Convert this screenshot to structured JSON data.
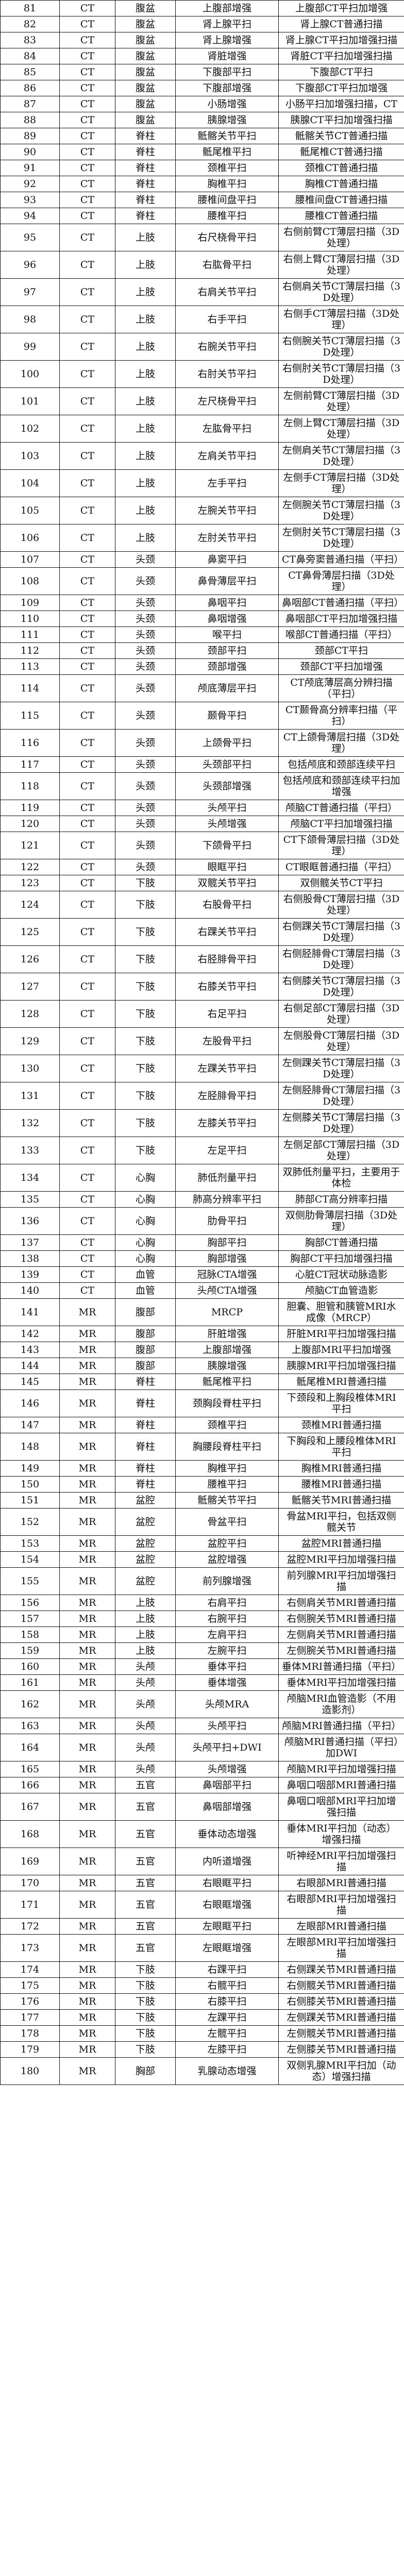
{
  "table": {
    "rows": [
      [
        "81",
        "CT",
        "腹盆",
        "上腹部增强",
        "上腹部CT平扫加增强"
      ],
      [
        "82",
        "CT",
        "腹盆",
        "肾上腺平扫",
        "肾上腺CT普通扫描"
      ],
      [
        "83",
        "CT",
        "腹盆",
        "肾上腺增强",
        "肾上腺CT平扫加增强扫描"
      ],
      [
        "84",
        "CT",
        "腹盆",
        "肾脏增强",
        "肾脏CT平扫加增强扫描"
      ],
      [
        "85",
        "CT",
        "腹盆",
        "下腹部平扫",
        "下腹部CT平扫"
      ],
      [
        "86",
        "CT",
        "腹盆",
        "下腹部增强",
        "下腹部CT平扫加增强"
      ],
      [
        "87",
        "CT",
        "腹盆",
        "小肠增强",
        "小肠平扫加增强扫描，CT"
      ],
      [
        "88",
        "CT",
        "腹盆",
        "胰腺增强",
        "胰腺CT平扫加增强扫描"
      ],
      [
        "89",
        "CT",
        "脊柱",
        "骶髂关节平扫",
        "骶髂关节CT普通扫描"
      ],
      [
        "90",
        "CT",
        "脊柱",
        "骶尾椎平扫",
        "骶尾椎CT普通扫描"
      ],
      [
        "91",
        "CT",
        "脊柱",
        "颈椎平扫",
        "颈椎CT普通扫描"
      ],
      [
        "92",
        "CT",
        "脊柱",
        "胸椎平扫",
        "胸椎CT普通扫描"
      ],
      [
        "93",
        "CT",
        "脊柱",
        "腰椎间盘平扫",
        "腰椎间盘CT普通扫描"
      ],
      [
        "94",
        "CT",
        "脊柱",
        "腰椎平扫",
        "腰椎CT普通扫描"
      ],
      [
        "95",
        "CT",
        "上肢",
        "右尺桡骨平扫",
        "右侧前臂CT薄层扫描（3D处理）"
      ],
      [
        "96",
        "CT",
        "上肢",
        "右肱骨平扫",
        "右侧上臂CT薄层扫描（3D处理）"
      ],
      [
        "97",
        "CT",
        "上肢",
        "右肩关节平扫",
        "右侧肩关节CT薄层扫描（3D处理）"
      ],
      [
        "98",
        "CT",
        "上肢",
        "右手平扫",
        "右侧手CT薄层扫描（3D处理）"
      ],
      [
        "99",
        "CT",
        "上肢",
        "右腕关节平扫",
        "右侧腕关节CT薄层扫描（3D处理）"
      ],
      [
        "100",
        "CT",
        "上肢",
        "右肘关节平扫",
        "右侧肘关节CT薄层扫描（3D处理）"
      ],
      [
        "101",
        "CT",
        "上肢",
        "左尺桡骨平扫",
        "左侧前臂CT薄层扫描（3D处理）"
      ],
      [
        "102",
        "CT",
        "上肢",
        "左肱骨平扫",
        "左侧上臂CT薄层扫描（3D处理）"
      ],
      [
        "103",
        "CT",
        "上肢",
        "左肩关节平扫",
        "左侧肩关节CT薄层扫描（3D处理）"
      ],
      [
        "104",
        "CT",
        "上肢",
        "左手平扫",
        "左侧手CT薄层扫描（3D处理）"
      ],
      [
        "105",
        "CT",
        "上肢",
        "左腕关节平扫",
        "左侧腕关节CT薄层扫描（3D处理）"
      ],
      [
        "106",
        "CT",
        "上肢",
        "左肘关节平扫",
        "左侧肘关节CT薄层扫描（3D处理）"
      ],
      [
        "107",
        "CT",
        "头颈",
        "鼻窦平扫",
        "CT鼻旁窦普通扫描（平扫）"
      ],
      [
        "108",
        "CT",
        "头颈",
        "鼻骨薄层平扫",
        "CT鼻骨薄层扫描（3D处理）"
      ],
      [
        "109",
        "CT",
        "头颈",
        "鼻咽平扫",
        "鼻咽部CT普通扫描（平扫）"
      ],
      [
        "110",
        "CT",
        "头颈",
        "鼻咽增强",
        "鼻咽部CT平扫加增强扫描"
      ],
      [
        "111",
        "CT",
        "头颈",
        "喉平扫",
        "喉部CT普通扫描（平扫）"
      ],
      [
        "112",
        "CT",
        "头颈",
        "颈部平扫",
        "颈部CT平扫"
      ],
      [
        "113",
        "CT",
        "头颈",
        "颈部增强",
        "颈部CT平扫加增强"
      ],
      [
        "114",
        "CT",
        "头颈",
        "颅底薄层平扫",
        "CT颅底薄层高分辨扫描（平扫）"
      ],
      [
        "115",
        "CT",
        "头颈",
        "颞骨平扫",
        "CT颞骨高分辨率扫描（平扫）"
      ],
      [
        "116",
        "CT",
        "头颈",
        "上颌骨平扫",
        "CT上颌骨薄层扫描（3D处理）"
      ],
      [
        "117",
        "CT",
        "头颈",
        "头颈部平扫",
        "包括颅底和颈部连续平扫"
      ],
      [
        "118",
        "CT",
        "头颈",
        "头颈部增强",
        "包括颅底和颈部连续平扫加增强"
      ],
      [
        "119",
        "CT",
        "头颈",
        "头颅平扫",
        "颅脑CT普通扫描（平扫）"
      ],
      [
        "120",
        "CT",
        "头颈",
        "头颅增强",
        "颅脑CT平扫加增强扫描"
      ],
      [
        "121",
        "CT",
        "头颈",
        "下颌骨平扫",
        "CT下颌骨薄层扫描（3D处理）"
      ],
      [
        "122",
        "CT",
        "头颈",
        "眼眶平扫",
        "CT眼眶普通扫描（平扫）"
      ],
      [
        "123",
        "CT",
        "下肢",
        "双髋关节平扫",
        "双侧髋关节CT平扫"
      ],
      [
        "124",
        "CT",
        "下肢",
        "右股骨平扫",
        "右侧股骨CT薄层扫描（3D处理）"
      ],
      [
        "125",
        "CT",
        "下肢",
        "右踝关节平扫",
        "右侧踝关节CT薄层扫描（3D处理）"
      ],
      [
        "126",
        "CT",
        "下肢",
        "右胫腓骨平扫",
        "右侧胫腓骨CT薄层扫描（3D处理）"
      ],
      [
        "127",
        "CT",
        "下肢",
        "右膝关节平扫",
        "右侧膝关节CT薄层扫描（3D处理）"
      ],
      [
        "128",
        "CT",
        "下肢",
        "右足平扫",
        "右侧足部CT薄层扫描（3D处理）"
      ],
      [
        "129",
        "CT",
        "下肢",
        "左股骨平扫",
        "左侧股骨CT薄层扫描（3D处理）"
      ],
      [
        "130",
        "CT",
        "下肢",
        "左踝关节平扫",
        "左侧踝关节CT薄层扫描（3D处理）"
      ],
      [
        "131",
        "CT",
        "下肢",
        "左胫腓骨平扫",
        "左侧胫腓骨CT薄层扫描（3D处理）"
      ],
      [
        "132",
        "CT",
        "下肢",
        "左膝关节平扫",
        "左侧膝关节CT薄层扫描（3D处理）"
      ],
      [
        "133",
        "CT",
        "下肢",
        "左足平扫",
        "左侧足部CT薄层扫描（3D处理）"
      ],
      [
        "134",
        "CT",
        "心胸",
        "肺低剂量平扫",
        "双肺低剂量平扫，主要用于体检"
      ],
      [
        "135",
        "CT",
        "心胸",
        "肺高分辨率平扫",
        "肺部CT高分辨率扫描"
      ],
      [
        "136",
        "CT",
        "心胸",
        "肋骨平扫",
        "双侧肋骨薄层扫描（3D处理）"
      ],
      [
        "137",
        "CT",
        "心胸",
        "胸部平扫",
        "胸部CT普通扫描"
      ],
      [
        "138",
        "CT",
        "心胸",
        "胸部增强",
        "胸部CT平扫加增强扫描"
      ],
      [
        "139",
        "CT",
        "血管",
        "冠脉CTA增强",
        "心脏CT冠状动脉造影"
      ],
      [
        "140",
        "CT",
        "血管",
        "头颅CTA增强",
        "颅脑CT血管造影"
      ],
      [
        "141",
        "MR",
        "腹部",
        "MRCP",
        "胆囊、胆管和胰管MRI水成像（MRCP）"
      ],
      [
        "142",
        "MR",
        "腹部",
        "肝脏增强",
        "肝脏MRI平扫加增强扫描"
      ],
      [
        "143",
        "MR",
        "腹部",
        "上腹部增强",
        "上腹部MRI平扫加增强"
      ],
      [
        "144",
        "MR",
        "腹部",
        "胰腺增强",
        "胰腺MRI平扫加增强扫描"
      ],
      [
        "145",
        "MR",
        "脊柱",
        "骶尾椎平扫",
        "骶尾椎MRI普通扫描"
      ],
      [
        "146",
        "MR",
        "脊柱",
        "颈胸段脊柱平扫",
        "下颈段和上胸段椎体MRI平扫"
      ],
      [
        "147",
        "MR",
        "脊柱",
        "颈椎平扫",
        "颈椎MRI普通扫描"
      ],
      [
        "148",
        "MR",
        "脊柱",
        "胸腰段脊柱平扫",
        "下胸段和上腰段椎体MRI平扫"
      ],
      [
        "149",
        "MR",
        "脊柱",
        "胸椎平扫",
        "胸椎MRI普通扫描"
      ],
      [
        "150",
        "MR",
        "脊柱",
        "腰椎平扫",
        "腰椎MRI普通扫描"
      ],
      [
        "151",
        "MR",
        "盆腔",
        "骶髂关节平扫",
        "骶髂关节MRI普通扫描"
      ],
      [
        "152",
        "MR",
        "盆腔",
        "骨盆平扫",
        "骨盆MRI平扫，包括双侧髋关节"
      ],
      [
        "153",
        "MR",
        "盆腔",
        "盆腔平扫",
        "盆腔MRI普通扫描"
      ],
      [
        "154",
        "MR",
        "盆腔",
        "盆腔增强",
        "盆腔MRI平扫加增强扫描"
      ],
      [
        "155",
        "MR",
        "盆腔",
        "前列腺增强",
        "前列腺MRI平扫加增强扫描"
      ],
      [
        "156",
        "MR",
        "上肢",
        "右肩平扫",
        "右侧肩关节MRI普通扫描"
      ],
      [
        "157",
        "MR",
        "上肢",
        "右腕平扫",
        "右侧腕关节MRI普通扫描"
      ],
      [
        "158",
        "MR",
        "上肢",
        "左肩平扫",
        "左侧肩关节MRI普通扫描"
      ],
      [
        "159",
        "MR",
        "上肢",
        "左腕平扫",
        "左侧腕关节MRI普通扫描"
      ],
      [
        "160",
        "MR",
        "头颅",
        "垂体平扫",
        "垂体MRI普通扫描（平扫）"
      ],
      [
        "161",
        "MR",
        "头颅",
        "垂体增强",
        "垂体MRI平扫加增强扫描"
      ],
      [
        "162",
        "MR",
        "头颅",
        "头颅MRA",
        "颅脑MRI血管造影（不用造影剂）"
      ],
      [
        "163",
        "MR",
        "头颅",
        "头颅平扫",
        "颅脑MRI普通扫描（平扫）"
      ],
      [
        "164",
        "MR",
        "头颅",
        "头颅平扫+DWI",
        "颅脑MRI普通扫描（平扫）加DWI"
      ],
      [
        "165",
        "MR",
        "头颅",
        "头颅增强",
        "颅脑MRI平扫加增强扫描"
      ],
      [
        "166",
        "MR",
        "五官",
        "鼻咽部平扫",
        "鼻咽口咽部MRI普通扫描"
      ],
      [
        "167",
        "MR",
        "五官",
        "鼻咽部增强",
        "鼻咽口咽部MRI平扫加增强扫描"
      ],
      [
        "168",
        "MR",
        "五官",
        "垂体动态增强",
        "垂体MRI平扫加（动态）增强扫描"
      ],
      [
        "169",
        "MR",
        "五官",
        "内听道增强",
        "听神经MRI平扫加增强扫描"
      ],
      [
        "170",
        "MR",
        "五官",
        "右眼眶平扫",
        "右眼部MRI普通扫描"
      ],
      [
        "171",
        "MR",
        "五官",
        "右眼眶增强",
        "右眼部MRI平扫加增强扫描"
      ],
      [
        "172",
        "MR",
        "五官",
        "左眼眶平扫",
        "左眼部MRI普通扫描"
      ],
      [
        "173",
        "MR",
        "五官",
        "左眼眶增强",
        "左眼部MRI平扫加增强扫描"
      ],
      [
        "174",
        "MR",
        "下肢",
        "右踝平扫",
        "右侧踝关节MRI普通扫描"
      ],
      [
        "175",
        "MR",
        "下肢",
        "右髋平扫",
        "右侧髋关节MRI普通扫描"
      ],
      [
        "176",
        "MR",
        "下肢",
        "右膝平扫",
        "右侧膝关节MRI普通扫描"
      ],
      [
        "177",
        "MR",
        "下肢",
        "左踝平扫",
        "左侧踝关节MRI普通扫描"
      ],
      [
        "178",
        "MR",
        "下肢",
        "左髋平扫",
        "左侧髋关节MRI普通扫描"
      ],
      [
        "179",
        "MR",
        "下肢",
        "左膝平扫",
        "左侧膝关节MRI普通扫描"
      ],
      [
        "180",
        "MR",
        "胸部",
        "乳腺动态增强",
        "双侧乳腺MRI平扫加（动态）增强扫描"
      ]
    ]
  }
}
